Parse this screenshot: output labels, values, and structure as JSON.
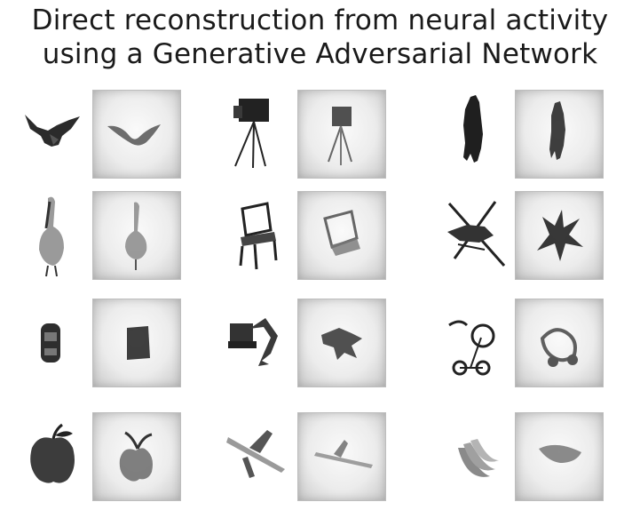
{
  "title": {
    "line1": "Direct reconstruction from neural activity",
    "line2": "using a Generative Adversarial Network"
  },
  "pairs": [
    {
      "original": "bat-original-image",
      "reconstruction": "bat-reconstruction-image"
    },
    {
      "original": "camera-tripod-original-image",
      "reconstruction": "camera-tripod-reconstruction-image"
    },
    {
      "original": "horse-original-image",
      "reconstruction": "horse-reconstruction-image"
    },
    {
      "original": "pelican-original-image",
      "reconstruction": "pelican-reconstruction-image"
    },
    {
      "original": "chair-original-image",
      "reconstruction": "chair-reconstruction-image"
    },
    {
      "original": "helicopter-original-image",
      "reconstruction": "helicopter-reconstruction-image"
    },
    {
      "original": "car-original-image",
      "reconstruction": "car-reconstruction-image"
    },
    {
      "original": "excavator-original-image",
      "reconstruction": "excavator-reconstruction-image"
    },
    {
      "original": "tricycle-original-image",
      "reconstruction": "tricycle-reconstruction-image"
    },
    {
      "original": "apple-original-image",
      "reconstruction": "apple-reconstruction-image"
    },
    {
      "original": "airplane-original-image",
      "reconstruction": "airplane-reconstruction-image"
    },
    {
      "original": "banana-original-image",
      "reconstruction": "banana-reconstruction-image"
    }
  ]
}
